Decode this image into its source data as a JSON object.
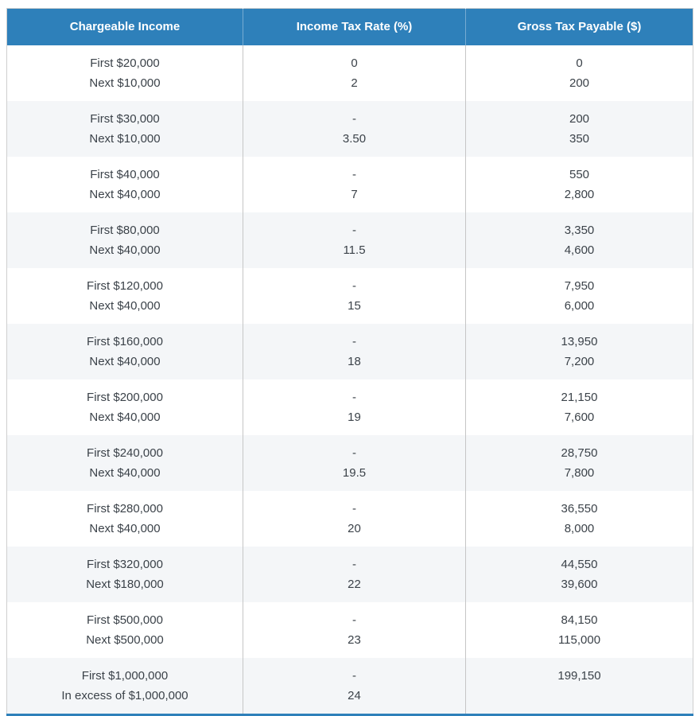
{
  "chart_data": {
    "type": "table",
    "title": "Income tax rate table",
    "columns": [
      "Chargeable Income",
      "Income Tax Rate (%)",
      "Gross Tax Payable ($)"
    ],
    "rows": [
      {
        "income": [
          "First $20,000",
          "Next $10,000"
        ],
        "rate": [
          "0",
          "2"
        ],
        "gross": [
          "0",
          "200"
        ]
      },
      {
        "income": [
          "First $30,000",
          "Next $10,000"
        ],
        "rate": [
          "-",
          "3.50"
        ],
        "gross": [
          "200",
          "350"
        ]
      },
      {
        "income": [
          "First $40,000",
          "Next $40,000"
        ],
        "rate": [
          "-",
          "7"
        ],
        "gross": [
          "550",
          "2,800"
        ]
      },
      {
        "income": [
          "First $80,000",
          "Next $40,000"
        ],
        "rate": [
          "-",
          "11.5"
        ],
        "gross": [
          "3,350",
          "4,600"
        ]
      },
      {
        "income": [
          "First $120,000",
          "Next $40,000"
        ],
        "rate": [
          "-",
          "15"
        ],
        "gross": [
          "7,950",
          "6,000"
        ]
      },
      {
        "income": [
          "First $160,000",
          "Next $40,000"
        ],
        "rate": [
          "-",
          "18"
        ],
        "gross": [
          "13,950",
          "7,200"
        ]
      },
      {
        "income": [
          "First $200,000",
          "Next $40,000"
        ],
        "rate": [
          "-",
          "19"
        ],
        "gross": [
          "21,150",
          "7,600"
        ]
      },
      {
        "income": [
          "First $240,000",
          "Next $40,000"
        ],
        "rate": [
          "-",
          "19.5"
        ],
        "gross": [
          "28,750",
          "7,800"
        ]
      },
      {
        "income": [
          "First $280,000",
          "Next $40,000"
        ],
        "rate": [
          "-",
          "20"
        ],
        "gross": [
          "36,550",
          "8,000"
        ]
      },
      {
        "income": [
          "First $320,000",
          "Next $180,000"
        ],
        "rate": [
          "-",
          "22"
        ],
        "gross": [
          "44,550",
          "39,600"
        ]
      },
      {
        "income": [
          "First $500,000",
          "Next $500,000"
        ],
        "rate": [
          "-",
          "23"
        ],
        "gross": [
          "84,150",
          "115,000"
        ]
      },
      {
        "income": [
          "First $1,000,000",
          "In excess of $1,000,000"
        ],
        "rate": [
          "-",
          "24"
        ],
        "gross": [
          "199,150",
          ""
        ]
      }
    ],
    "layout": {
      "striping": "alternate row groups shaded",
      "alignment": "center"
    }
  },
  "colors": {
    "header_background": "#2e80ba",
    "header_text": "#ffffff",
    "stripe_background": "#f4f6f8",
    "column_border": "#c6c6c6",
    "bottom_border": "#2e80ba",
    "body_text": "#3b4249"
  }
}
